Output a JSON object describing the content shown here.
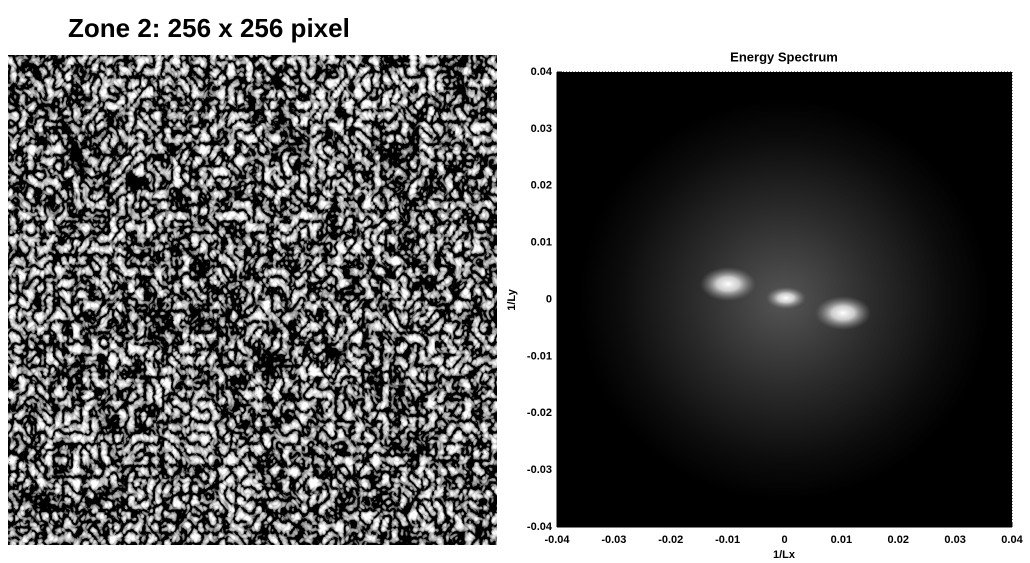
{
  "title": "Zone 2: 256 x 256 pixel",
  "chart_data": {
    "type": "image",
    "title": "Energy Spectrum",
    "xlabel": "1/Lx",
    "ylabel": "1/Ly",
    "xlim": [
      -0.04,
      0.04
    ],
    "ylim": [
      -0.04,
      0.04
    ],
    "xticks": [
      -0.04,
      -0.03,
      -0.02,
      -0.01,
      0,
      0.01,
      0.02,
      0.03,
      0.04
    ],
    "yticks": [
      -0.04,
      -0.03,
      -0.02,
      -0.01,
      0,
      0.01,
      0.02,
      0.03,
      0.04
    ]
  }
}
